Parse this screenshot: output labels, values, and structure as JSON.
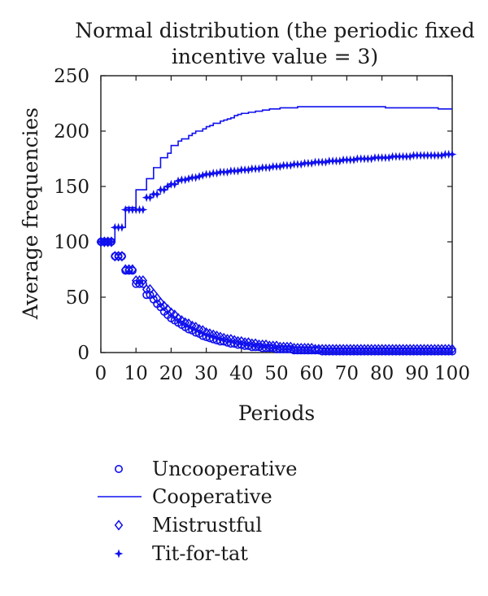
{
  "chart_data": {
    "type": "line",
    "title": "Normal distribution (the periodic fixed incentive value = 3)",
    "title_lines": [
      "Normal distribution (the periodic fixed",
      "incentive value = 3)"
    ],
    "xlabel": "Periods",
    "ylabel": "Average frequencies",
    "xlim": [
      0,
      100
    ],
    "ylim": [
      0,
      250
    ],
    "xticks": [
      0,
      10,
      20,
      30,
      40,
      50,
      60,
      70,
      80,
      90,
      100
    ],
    "yticks": [
      0,
      50,
      100,
      150,
      200,
      250
    ],
    "grid": false,
    "legend": "bottom",
    "color": "#1010ee",
    "x": [
      0,
      1,
      2,
      3,
      4,
      5,
      6,
      7,
      8,
      9,
      10,
      11,
      12,
      13,
      14,
      15,
      16,
      17,
      18,
      19,
      20,
      21,
      22,
      23,
      24,
      25,
      26,
      27,
      28,
      29,
      30,
      31,
      32,
      33,
      34,
      35,
      36,
      37,
      38,
      39,
      40,
      41,
      42,
      43,
      44,
      45,
      46,
      47,
      48,
      49,
      50,
      51,
      52,
      53,
      54,
      55,
      56,
      57,
      58,
      59,
      60,
      61,
      62,
      63,
      64,
      65,
      66,
      67,
      68,
      69,
      70,
      71,
      72,
      73,
      74,
      75,
      76,
      77,
      78,
      79,
      80,
      81,
      82,
      83,
      84,
      85,
      86,
      87,
      88,
      89,
      90,
      91,
      92,
      93,
      94,
      95,
      96,
      97,
      98,
      99,
      100
    ],
    "series": [
      {
        "name": "Uncooperative",
        "marker": "circle",
        "values": [
          100,
          100,
          100,
          100,
          87,
          87,
          87,
          74,
          74,
          74,
          62,
          62,
          62,
          52,
          52,
          48,
          44,
          41,
          37,
          34,
          31,
          29,
          27,
          25,
          23,
          21,
          20,
          18,
          17,
          15,
          14,
          13,
          12,
          11,
          10,
          10,
          9,
          8,
          8,
          7,
          7,
          6,
          6,
          5,
          5,
          5,
          4,
          4,
          4,
          4,
          3,
          3,
          3,
          3,
          3,
          2,
          2,
          2,
          2,
          2,
          2,
          2,
          2,
          1,
          1,
          1,
          1,
          1,
          1,
          1,
          1,
          1,
          1,
          1,
          1,
          1,
          1,
          1,
          1,
          1,
          1,
          1,
          1,
          1,
          1,
          1,
          1,
          1,
          1,
          1,
          1,
          1,
          1,
          1,
          1,
          1,
          1,
          1,
          1,
          1,
          1
        ]
      },
      {
        "name": "Cooperative",
        "marker": "line",
        "values": [
          100,
          100,
          100,
          100,
          113,
          113,
          113,
          131,
          131,
          131,
          147,
          147,
          147,
          157,
          157,
          167,
          167,
          176,
          176,
          180,
          187,
          187,
          191,
          193,
          193,
          196,
          198,
          200,
          200,
          202,
          204,
          205,
          207,
          207,
          209,
          210,
          211,
          212,
          214,
          215,
          216,
          216,
          217,
          217,
          218,
          218,
          219,
          219,
          220,
          220,
          220,
          221,
          221,
          221,
          221,
          221,
          222,
          222,
          222,
          222,
          222,
          222,
          222,
          222,
          222,
          222,
          222,
          222,
          222,
          222,
          222,
          222,
          222,
          222,
          222,
          222,
          222,
          222,
          222,
          222,
          222,
          221,
          221,
          221,
          221,
          221,
          221,
          221,
          221,
          221,
          221,
          221,
          221,
          221,
          221,
          221,
          220,
          220,
          220,
          220,
          220
        ]
      },
      {
        "name": "Mistrustful",
        "marker": "diamond",
        "values": [
          100,
          100,
          100,
          100,
          87,
          87,
          87,
          75,
          75,
          75,
          65,
          65,
          65,
          57,
          57,
          53,
          49,
          45,
          42,
          39,
          36,
          34,
          31,
          29,
          27,
          26,
          24,
          23,
          21,
          20,
          18,
          17,
          16,
          15,
          14,
          13,
          12,
          12,
          11,
          10,
          10,
          9,
          9,
          8,
          8,
          7,
          7,
          7,
          6,
          6,
          6,
          5,
          5,
          5,
          5,
          4,
          4,
          4,
          4,
          4,
          4,
          3,
          3,
          3,
          3,
          3,
          3,
          3,
          3,
          3,
          3,
          3,
          3,
          3,
          3,
          3,
          3,
          3,
          3,
          3,
          3,
          3,
          3,
          3,
          3,
          3,
          3,
          3,
          3,
          3,
          3,
          3,
          3,
          3,
          3,
          3,
          3,
          3,
          3,
          3,
          3
        ]
      },
      {
        "name": "Tit-for-tat",
        "marker": "star",
        "values": [
          100,
          100,
          100,
          100,
          113,
          113,
          113,
          129,
          129,
          129,
          129,
          129,
          129,
          140,
          140,
          143,
          143,
          147,
          147,
          150,
          152,
          152,
          155,
          156,
          156,
          157,
          158,
          158,
          159,
          160,
          161,
          161,
          162,
          162,
          163,
          163,
          163,
          164,
          164,
          164,
          165,
          165,
          165,
          166,
          166,
          166,
          167,
          167,
          167,
          168,
          168,
          168,
          169,
          169,
          169,
          170,
          170,
          170,
          171,
          171,
          171,
          172,
          172,
          172,
          172,
          173,
          173,
          173,
          173,
          174,
          174,
          174,
          174,
          175,
          175,
          175,
          175,
          175,
          176,
          176,
          176,
          176,
          176,
          177,
          177,
          177,
          177,
          177,
          177,
          178,
          178,
          178,
          178,
          178,
          178,
          178,
          178,
          178,
          179,
          179,
          179
        ]
      }
    ]
  }
}
